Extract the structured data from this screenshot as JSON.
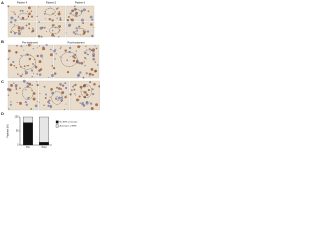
{
  "panels": [
    {
      "label": "A",
      "headers": [
        "Patient 4",
        "Patient 5",
        "Patient 6"
      ]
    },
    {
      "label": "B",
      "headers": [
        "Pre-treatment",
        "Post-treatment"
      ]
    },
    {
      "label": "C",
      "headers": []
    },
    {
      "label": "D",
      "headers": []
    }
  ],
  "chart_data": {
    "type": "stacked-bar",
    "ylabel": "Patients (%)",
    "categories": [
      "Pre",
      "Post"
    ],
    "series": [
      {
        "name": "No ERK activation",
        "color": "#111111",
        "values": [
          80,
          10
        ]
      },
      {
        "name": "Activation of ERK",
        "color": "#e6e6e6",
        "values": [
          20,
          90
        ]
      }
    ],
    "ylim": [
      0,
      100
    ],
    "yticks": [
      0,
      50,
      100
    ]
  }
}
